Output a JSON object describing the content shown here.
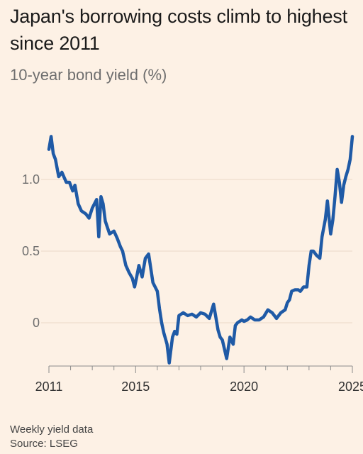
{
  "title": "Japan's borrowing costs climb to highest since 2011",
  "subtitle": "10-year bond yield (%)",
  "footer": {
    "note": "Weekly yield data",
    "source": "Source: LSEG"
  },
  "colors": {
    "background": "#fdf1e5",
    "line": "#1f5aa6",
    "grid": "#ead9c8",
    "axis": "#8c8c8c"
  },
  "chart_data": {
    "type": "line",
    "title": "Japan's borrowing costs climb to highest since 2011",
    "subtitle": "10-year bond yield (%)",
    "xlabel": "",
    "ylabel": "",
    "xlim": [
      2011.0,
      2025.0
    ],
    "ylim": [
      -0.28,
      1.32
    ],
    "yticks": [
      0,
      0.5,
      1.0
    ],
    "ytick_labels": [
      "0",
      "0.5",
      "1.0"
    ],
    "xticks": [
      2011,
      2015,
      2020,
      2025
    ],
    "xtick_labels": [
      "2011",
      "2015",
      "2020",
      "2025"
    ],
    "grid": true,
    "series": [
      {
        "x": [
          2011.0,
          2011.1,
          2011.2,
          2011.3,
          2011.45,
          2011.6,
          2011.8,
          2011.95,
          2012.1,
          2012.2,
          2012.35,
          2012.5,
          2012.7,
          2012.85,
          2013.0,
          2013.2,
          2013.3,
          2013.4,
          2013.5,
          2013.6,
          2013.8,
          2014.0,
          2014.15,
          2014.3,
          2014.4,
          2014.55,
          2014.7,
          2014.85,
          2014.95,
          2015.05,
          2015.15,
          2015.3,
          2015.45,
          2015.6,
          2015.8,
          2016.0,
          2016.1,
          2016.2,
          2016.3,
          2016.45,
          2016.55,
          2016.7,
          2016.8,
          2016.9,
          2017.0,
          2017.2,
          2017.4,
          2017.6,
          2017.8,
          2018.0,
          2018.2,
          2018.4,
          2018.6,
          2018.8,
          2018.9,
          2019.0,
          2019.2,
          2019.35,
          2019.5,
          2019.6,
          2019.7,
          2019.9,
          2020.0,
          2020.15,
          2020.3,
          2020.5,
          2020.7,
          2020.9,
          2021.1,
          2021.3,
          2021.5,
          2021.7,
          2021.9,
          2022.0,
          2022.1,
          2022.2,
          2022.35,
          2022.5,
          2022.6,
          2022.75,
          2022.9,
          2023.0,
          2023.1,
          2023.2,
          2023.35,
          2023.5,
          2023.6,
          2023.75,
          2023.85,
          2024.0,
          2024.1,
          2024.2,
          2024.3,
          2024.4,
          2024.5,
          2024.6,
          2024.7,
          2024.8,
          2024.9,
          2025.0
        ],
        "values": [
          1.21,
          1.3,
          1.18,
          1.14,
          1.02,
          1.05,
          0.98,
          0.98,
          0.92,
          0.96,
          0.83,
          0.78,
          0.76,
          0.73,
          0.8,
          0.86,
          0.6,
          0.88,
          0.83,
          0.71,
          0.62,
          0.64,
          0.59,
          0.53,
          0.5,
          0.4,
          0.35,
          0.31,
          0.25,
          0.32,
          0.4,
          0.32,
          0.45,
          0.48,
          0.28,
          0.22,
          0.1,
          0.0,
          -0.07,
          -0.15,
          -0.28,
          -0.1,
          -0.06,
          -0.08,
          0.05,
          0.07,
          0.05,
          0.06,
          0.04,
          0.07,
          0.06,
          0.03,
          0.13,
          -0.05,
          -0.1,
          -0.12,
          -0.25,
          -0.1,
          -0.15,
          -0.02,
          0.0,
          0.02,
          0.01,
          0.02,
          0.04,
          0.02,
          0.02,
          0.04,
          0.09,
          0.07,
          0.03,
          0.07,
          0.09,
          0.14,
          0.16,
          0.22,
          0.23,
          0.23,
          0.22,
          0.25,
          0.25,
          0.4,
          0.5,
          0.5,
          0.47,
          0.45,
          0.6,
          0.72,
          0.85,
          0.62,
          0.72,
          0.88,
          1.07,
          0.98,
          0.84,
          0.96,
          1.02,
          1.07,
          1.14,
          1.3
        ]
      }
    ]
  }
}
